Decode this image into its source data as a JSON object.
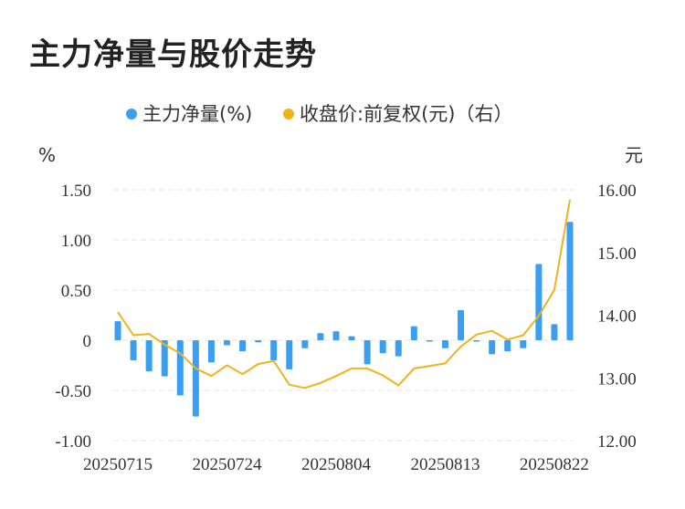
{
  "title": "主力净量与股价走势",
  "legend": {
    "bar_label": "主力净量(%)",
    "line_label": "收盘价:前复权(元)（右）"
  },
  "colors": {
    "bar": "#3a9ff0",
    "line": "#f2b21b",
    "grid": "#e6e6e6",
    "text": "#333333"
  },
  "chart_data": {
    "type": "bar",
    "left_unit": "%",
    "right_unit": "元",
    "y_left_ticks": [
      "1.50",
      "1.00",
      "0.50",
      "0",
      "-0.50",
      "-1.00"
    ],
    "y_right_ticks": [
      "16.00",
      "15.00",
      "14.00",
      "13.00",
      "12.00"
    ],
    "ylim_left": [
      -1.0,
      1.5
    ],
    "ylim_right": [
      12.0,
      16.0
    ],
    "x_tick_labels": [
      "20250715",
      "20250724",
      "20250804",
      "20250813",
      "20250822"
    ],
    "x_tick_indices": [
      0,
      7,
      14,
      21,
      28
    ],
    "grid": true,
    "series": [
      {
        "name": "主力净量(%)",
        "type": "bar",
        "axis": "left",
        "values": [
          0.19,
          -0.2,
          -0.31,
          -0.36,
          -0.55,
          -0.76,
          -0.22,
          -0.05,
          -0.11,
          -0.02,
          -0.2,
          -0.29,
          -0.08,
          0.07,
          0.09,
          0.04,
          -0.24,
          -0.13,
          -0.16,
          0.14,
          -0.01,
          -0.08,
          0.3,
          -0.01,
          -0.14,
          -0.11,
          -0.08,
          0.76,
          0.16,
          1.18
        ]
      },
      {
        "name": "收盘价:前复权(元)（右）",
        "type": "line",
        "axis": "right",
        "values": [
          14.05,
          13.68,
          13.7,
          13.53,
          13.39,
          13.15,
          13.03,
          13.2,
          13.06,
          13.22,
          13.27,
          12.89,
          12.84,
          12.92,
          13.03,
          13.15,
          13.15,
          13.04,
          12.88,
          13.15,
          13.19,
          13.23,
          13.5,
          13.69,
          13.75,
          13.61,
          13.68,
          13.99,
          14.4,
          15.84
        ]
      }
    ]
  }
}
